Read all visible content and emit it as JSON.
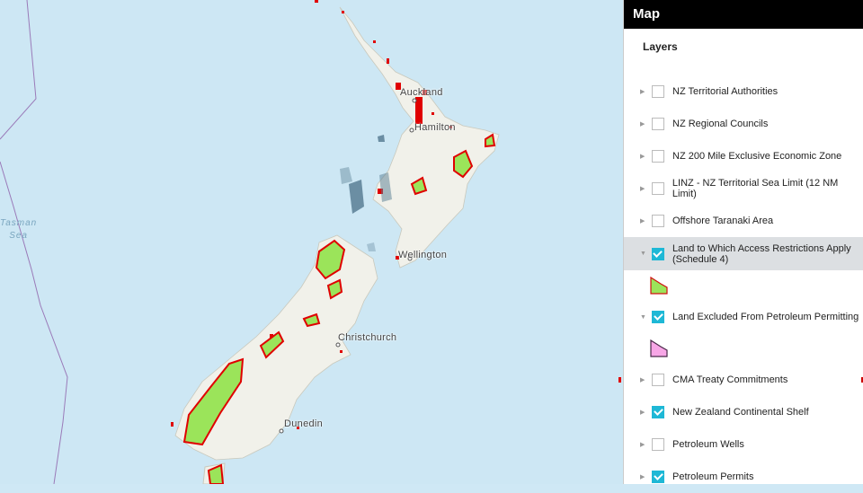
{
  "map": {
    "labels": {
      "auckland": "Auckland",
      "hamilton": "Hamilton",
      "wellington": "Wellington",
      "christchurch": "Christchurch",
      "dunedin": "Dunedin",
      "tasman": "Tasman\nSea"
    },
    "colors": {
      "sea": "#cde7f4",
      "land": "#f1f1ea",
      "restricted_fill": "#9be45a",
      "restricted_outline": "#e00000",
      "offshore": "#5a7f95"
    }
  },
  "panel": {
    "title": "Map",
    "layers_heading": "Layers",
    "layers": [
      {
        "label": "NZ Territorial Authorities",
        "checked": false,
        "expanded": false
      },
      {
        "label": "NZ Regional Councils",
        "checked": false,
        "expanded": false
      },
      {
        "label": "NZ 200 Mile Exclusive Economic Zone",
        "checked": false,
        "expanded": false
      },
      {
        "label": "LINZ - NZ Territorial Sea Limit (12 NM Limit)",
        "checked": false,
        "expanded": false
      },
      {
        "label": "Offshore Taranaki Area",
        "checked": false,
        "expanded": false
      },
      {
        "label": "Land to Which Access Restrictions Apply (Schedule 4)",
        "checked": true,
        "expanded": true,
        "selected": true,
        "legend_fill": "#9be45a",
        "legend_stroke": "#d01010"
      },
      {
        "label": "Land Excluded From Petroleum Permitting",
        "checked": true,
        "expanded": true,
        "legend_fill": "#f7a6e6",
        "legend_stroke": "#4a2a4a"
      },
      {
        "label": "CMA Treaty Commitments",
        "checked": false,
        "expanded": false
      },
      {
        "label": "New Zealand Continental Shelf",
        "checked": true,
        "expanded": false
      },
      {
        "label": "Petroleum Wells",
        "checked": false,
        "expanded": false
      },
      {
        "label": "Petroleum Permits",
        "checked": true,
        "expanded": false
      }
    ]
  }
}
